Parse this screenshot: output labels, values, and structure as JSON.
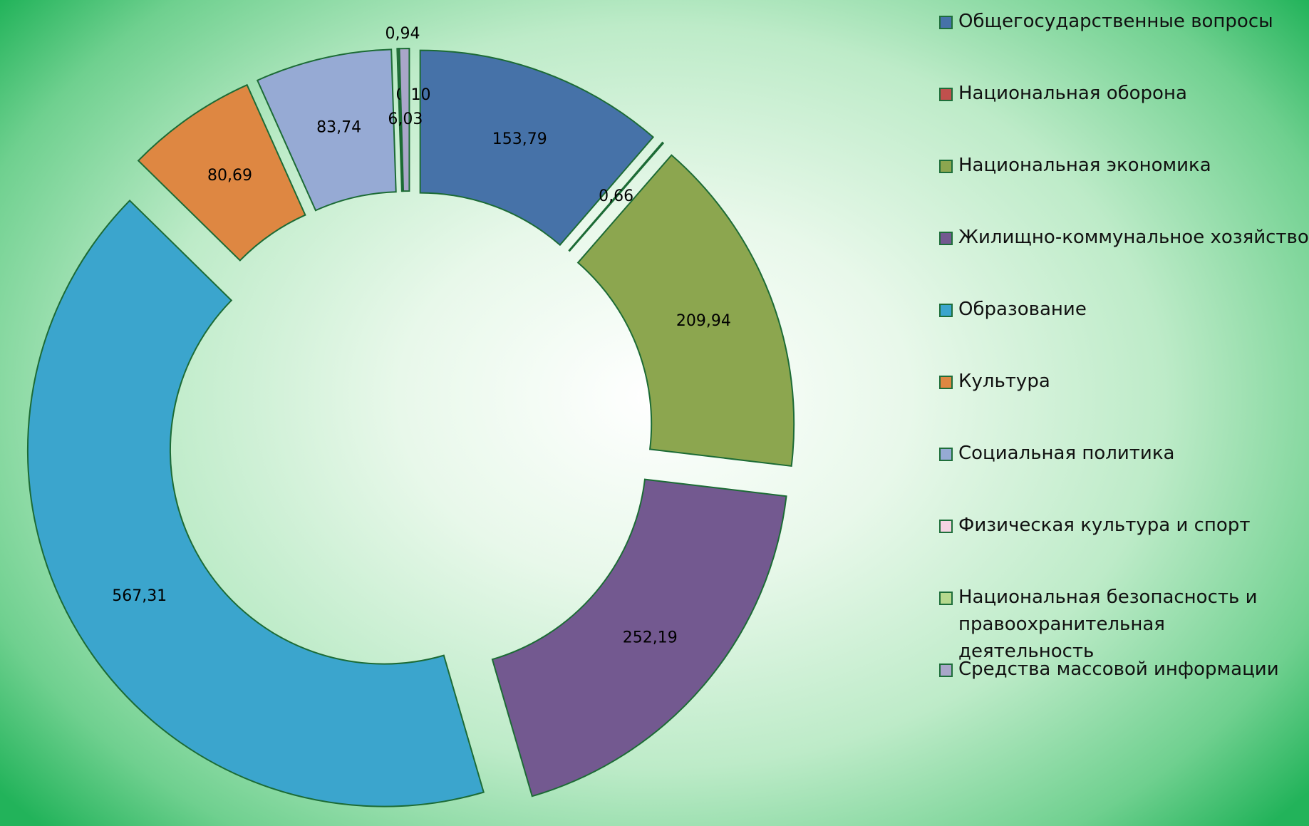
{
  "chart_data": {
    "type": "donut",
    "categories": [
      "Общегосударственные вопросы",
      "Национальная оборона",
      "Национальная экономика",
      "Жилищно-коммунальное хозяйство",
      "Образование",
      "Культура",
      "Социальная политика",
      "Физическая культура и спорт",
      "Национальная безопасность и правоохранительная деятельность",
      "Средства массовой информации"
    ],
    "values": [
      153.79,
      0.66,
      209.94,
      252.19,
      567.31,
      80.69,
      83.74,
      0.94,
      0.1,
      6.03
    ],
    "value_labels": [
      "153,79",
      "0,66",
      "209,94",
      "252,19",
      "567,31",
      "80,69",
      "83,74",
      "0,94",
      "0,10",
      "6,03"
    ],
    "colors": [
      "#4672a8",
      "#c0504d",
      "#8ca64f",
      "#735990",
      "#3ba5cd",
      "#de8742",
      "#96aad4",
      "#f6d3e3",
      "#b6d98e",
      "#a9a6c9"
    ],
    "legend": "right"
  }
}
